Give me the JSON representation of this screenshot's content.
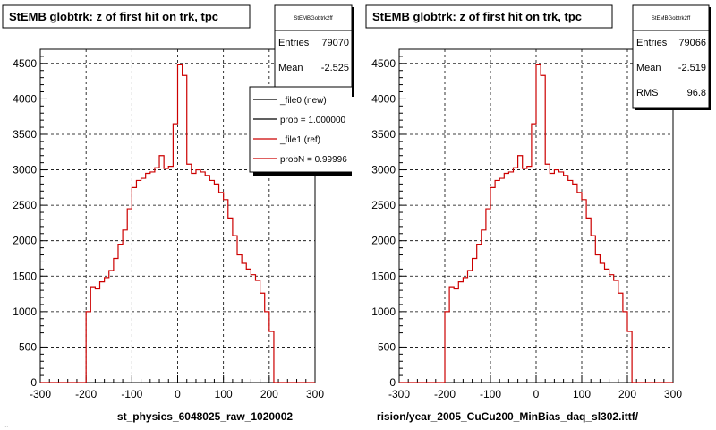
{
  "colors": {
    "ref_line": "#cc0000",
    "new_line": "#000000",
    "frame": "#000000",
    "grid": "#000000"
  },
  "footer_text": "...",
  "chart_data": [
    {
      "type": "line",
      "title": "StEMB globtrk: z of first hit on trk, tpc",
      "xlabel": "st_physics_6048025_raw_1020002",
      "xlim": [
        -300,
        300
      ],
      "ylim": [
        0,
        4700
      ],
      "x_ticks": [
        -300,
        -200,
        -100,
        0,
        100,
        200,
        300
      ],
      "y_ticks": [
        0,
        500,
        1000,
        1500,
        2000,
        2500,
        3000,
        3500,
        4000,
        4500
      ],
      "grid": true,
      "stats": {
        "name": "StEMBGobtrk2ff",
        "entries_label": "Entries",
        "entries_value": "79070",
        "mean_label": "Mean",
        "mean_value": "-2.525"
      },
      "legend": {
        "placement": "top-right",
        "entries": [
          {
            "label": "_file0 (new)",
            "color": "#000000"
          },
          {
            "label": "prob = 1.000000",
            "color": "#000000"
          },
          {
            "label": "_file1 (ref)",
            "color": "#cc0000"
          },
          {
            "label": "probN = 0.99996",
            "color": "#cc0000"
          }
        ]
      },
      "bin_edges": [
        -200,
        -190,
        -180,
        -170,
        -160,
        -150,
        -140,
        -130,
        -120,
        -110,
        -100,
        -90,
        -80,
        -70,
        -60,
        -50,
        -40,
        -30,
        -20,
        -10,
        0,
        10,
        20,
        30,
        40,
        50,
        60,
        70,
        80,
        90,
        100,
        110,
        120,
        130,
        140,
        150,
        160,
        170,
        180,
        190,
        200,
        210
      ],
      "series": [
        {
          "values": [
            1000,
            1350,
            1320,
            1420,
            1480,
            1580,
            1750,
            1950,
            2150,
            2450,
            2750,
            2850,
            2880,
            2950,
            2970,
            3030,
            3200,
            3020,
            3050,
            3650,
            4480,
            4330,
            3080,
            2950,
            3000,
            2970,
            2920,
            2850,
            2800,
            2680,
            2580,
            2320,
            2070,
            1800,
            1680,
            1600,
            1520,
            1440,
            1260,
            1000,
            720
          ]
        }
      ]
    },
    {
      "type": "line",
      "title": "StEMB globtrk: z of first hit on trk, tpc",
      "xlabel": "rision/year_2005_CuCu200_MinBias_daq_sl302.ittf/",
      "xlim": [
        -300,
        300
      ],
      "ylim": [
        0,
        4700
      ],
      "x_ticks": [
        -300,
        -200,
        -100,
        0,
        100,
        200,
        300
      ],
      "y_ticks": [
        0,
        500,
        1000,
        1500,
        2000,
        2500,
        3000,
        3500,
        4000,
        4500
      ],
      "grid": true,
      "stats": {
        "name": "StEMBGobtrk2ff",
        "entries_label": "Entries",
        "entries_value": "79066",
        "mean_label": "Mean",
        "mean_value": "-2.519",
        "rms_label": "RMS",
        "rms_value": "96.8"
      },
      "bin_edges": [
        -200,
        -190,
        -180,
        -170,
        -160,
        -150,
        -140,
        -130,
        -120,
        -110,
        -100,
        -90,
        -80,
        -70,
        -60,
        -50,
        -40,
        -30,
        -20,
        -10,
        0,
        10,
        20,
        30,
        40,
        50,
        60,
        70,
        80,
        90,
        100,
        110,
        120,
        130,
        140,
        150,
        160,
        170,
        180,
        190,
        200,
        210
      ],
      "series": [
        {
          "values": [
            1000,
            1350,
            1320,
            1420,
            1480,
            1580,
            1750,
            1950,
            2150,
            2450,
            2750,
            2850,
            2880,
            2950,
            2970,
            3030,
            3200,
            3020,
            3050,
            3650,
            4480,
            4330,
            3080,
            2950,
            3000,
            2970,
            2920,
            2850,
            2800,
            2680,
            2580,
            2320,
            2070,
            1800,
            1680,
            1600,
            1520,
            1440,
            1260,
            1000,
            720
          ]
        }
      ]
    }
  ]
}
